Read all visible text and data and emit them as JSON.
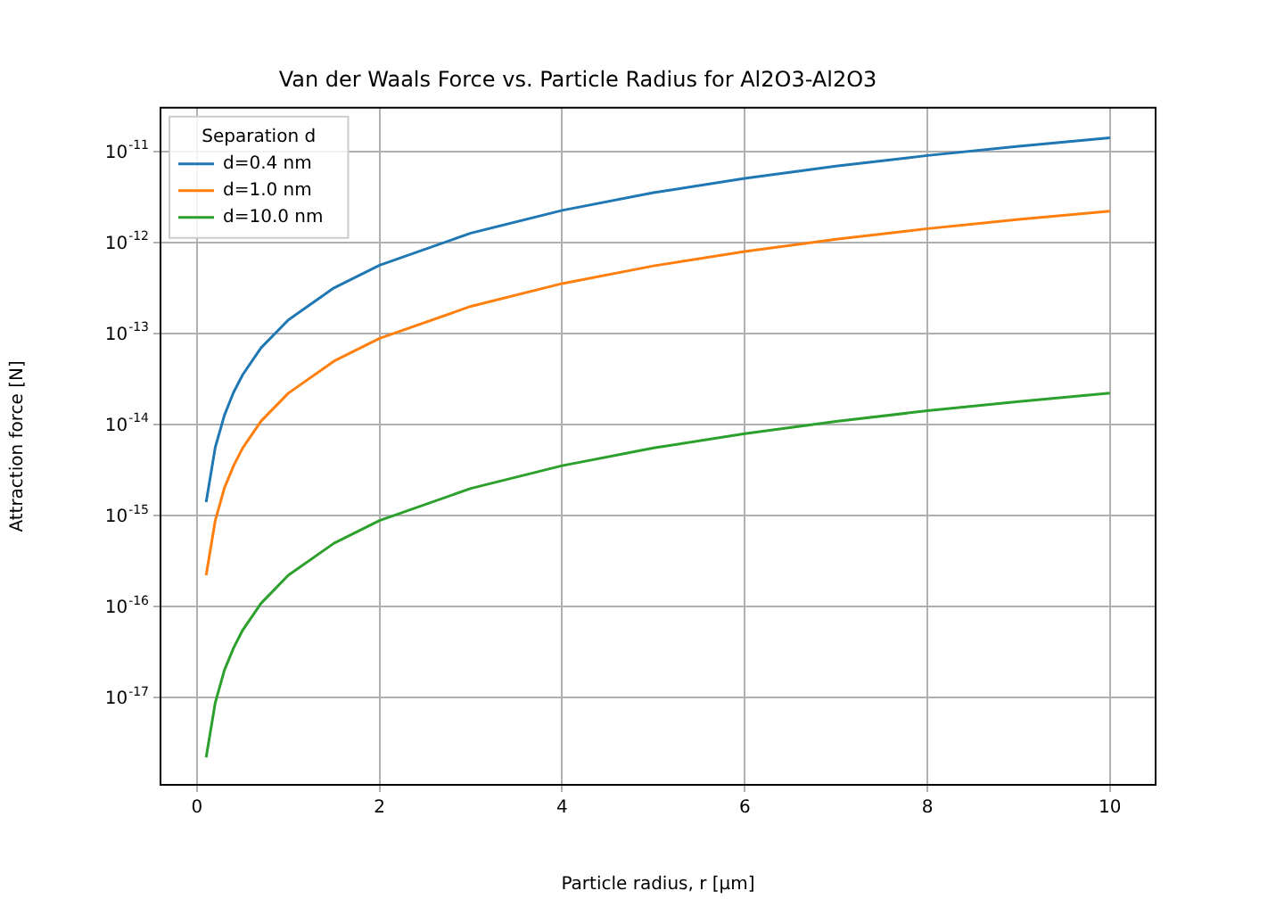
{
  "chart_data": {
    "type": "line",
    "title": "Van der Waals Force vs. Particle Radius for Al2O3-Al2O3",
    "xlabel": "Particle radius, r [µm]",
    "ylabel": "Attraction force [N]",
    "legend_title": "Separation d",
    "x": [
      0.1,
      0.2,
      0.3,
      0.4,
      0.5,
      0.7,
      1,
      1.5,
      2,
      3,
      4,
      5,
      6,
      7,
      8,
      9,
      10
    ],
    "series": [
      {
        "name": "d=0.4 nm",
        "color": "#1f77b4",
        "values": [
          1.4e-15,
          5.6e-15,
          1.26e-14,
          2.24e-14,
          3.5e-14,
          6.9e-14,
          1.4e-13,
          3.15e-13,
          5.6e-13,
          1.26e-12,
          2.24e-12,
          3.5e-12,
          5.04e-12,
          6.86e-12,
          8.96e-12,
          1.13e-11,
          1.4e-11
        ]
      },
      {
        "name": "d=1.0 nm",
        "color": "#ff7f0e",
        "values": [
          2.2e-16,
          8.8e-16,
          2e-15,
          3.5e-15,
          5.5e-15,
          1.08e-14,
          2.2e-14,
          4.95e-14,
          8.8e-14,
          1.98e-13,
          3.52e-13,
          5.5e-13,
          7.92e-13,
          1.08e-12,
          1.41e-12,
          1.78e-12,
          2.2e-12
        ]
      },
      {
        "name": "d=10.0 nm",
        "color": "#2ca02c",
        "values": [
          2.2e-18,
          8.8e-18,
          2e-17,
          3.5e-17,
          5.5e-17,
          1.08e-16,
          2.2e-16,
          4.95e-16,
          8.8e-16,
          1.98e-15,
          3.52e-15,
          5.5e-15,
          7.92e-15,
          1.08e-14,
          1.41e-14,
          1.78e-14,
          2.2e-14
        ]
      }
    ],
    "xlim": [
      -0.4,
      10.5
    ],
    "xticks": [
      0,
      2,
      4,
      6,
      8,
      10
    ],
    "ylim": [
      1.1e-18,
      3e-11
    ],
    "yticks": [
      {
        "value": 1e-17,
        "label": "10$^{-17}$"
      },
      {
        "value": 1e-16,
        "label": "10$^{-16}$"
      },
      {
        "value": 1e-15,
        "label": "10$^{-15}$"
      },
      {
        "value": 1e-14,
        "label": "10$^{-14}$"
      },
      {
        "value": 1e-13,
        "label": "10$^{-13}$"
      },
      {
        "value": 1e-12,
        "label": "10$^{-12}$"
      },
      {
        "value": 1e-11,
        "label": "10$^{-11}$"
      }
    ],
    "log": "y",
    "grid": true,
    "legend": "top left",
    "marker": "none",
    "line_style": "solid"
  }
}
